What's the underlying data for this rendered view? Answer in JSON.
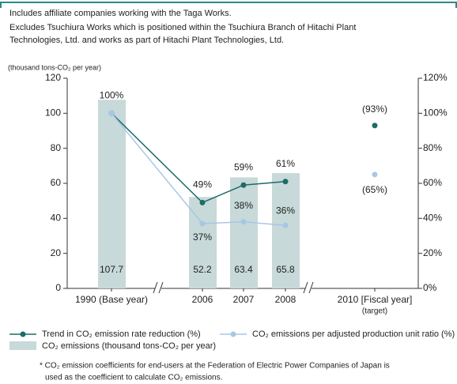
{
  "notes": [
    "Includes affiliate companies working with the Taga Works.",
    "Excludes Tsuchiura Works which is positioned within the Tsuchiura Branch of Hitachi Plant",
    "Technologies, Ltd. and works as part of Hitachi Plant Technologies, Ltd."
  ],
  "chart_data": {
    "type": "bar-line",
    "y_label": "(thousand tons-CO₂ per year)",
    "categories": [
      "1990 (Base year)",
      "2006",
      "2007",
      "2008",
      "2010 [Fiscal year]"
    ],
    "category_sublabels": [
      null,
      null,
      null,
      null,
      "(target)"
    ],
    "target_index": 4,
    "bars": {
      "name": "CO₂ emissions (thousand tons-CO₂ per year)",
      "color": "#c7d9d8",
      "values": [
        107.7,
        52.2,
        63.4,
        65.8,
        null
      ]
    },
    "series": [
      {
        "name": "Trend in CO₂ emission rate reduction (%)",
        "color": "#1e6b68",
        "axis": "y2",
        "values": [
          100,
          49,
          59,
          61,
          93
        ],
        "value_labels": [
          "100%",
          "49%",
          "59%",
          "61%",
          "(93%)"
        ]
      },
      {
        "name": "CO₂ emissions per adjusted production unit ratio (%)",
        "color": "#a8c7e6",
        "axis": "y2",
        "values": [
          100,
          37,
          38,
          36,
          65
        ],
        "value_labels": [
          null,
          "37%",
          "38%",
          "36%",
          "(65%)"
        ]
      }
    ],
    "ylim": [
      0,
      120
    ],
    "yticks": [
      0,
      20,
      40,
      60,
      80,
      100,
      120
    ],
    "y2lim": [
      0,
      120
    ],
    "y2ticks": [
      {
        "value": 0,
        "label": "0%"
      },
      {
        "value": 20,
        "label": "20%"
      },
      {
        "value": 40,
        "label": "40%"
      },
      {
        "value": 60,
        "label": "60%"
      },
      {
        "value": 80,
        "label": "80%"
      },
      {
        "value": 100,
        "label": "100%"
      },
      {
        "value": 120,
        "label": "120%"
      }
    ],
    "footnote": [
      "* CO₂ emission coefficients for end-users at the Federation of Electric Power Companies of Japan is",
      "used as the coefficient to calculate CO₂ emissions."
    ]
  }
}
